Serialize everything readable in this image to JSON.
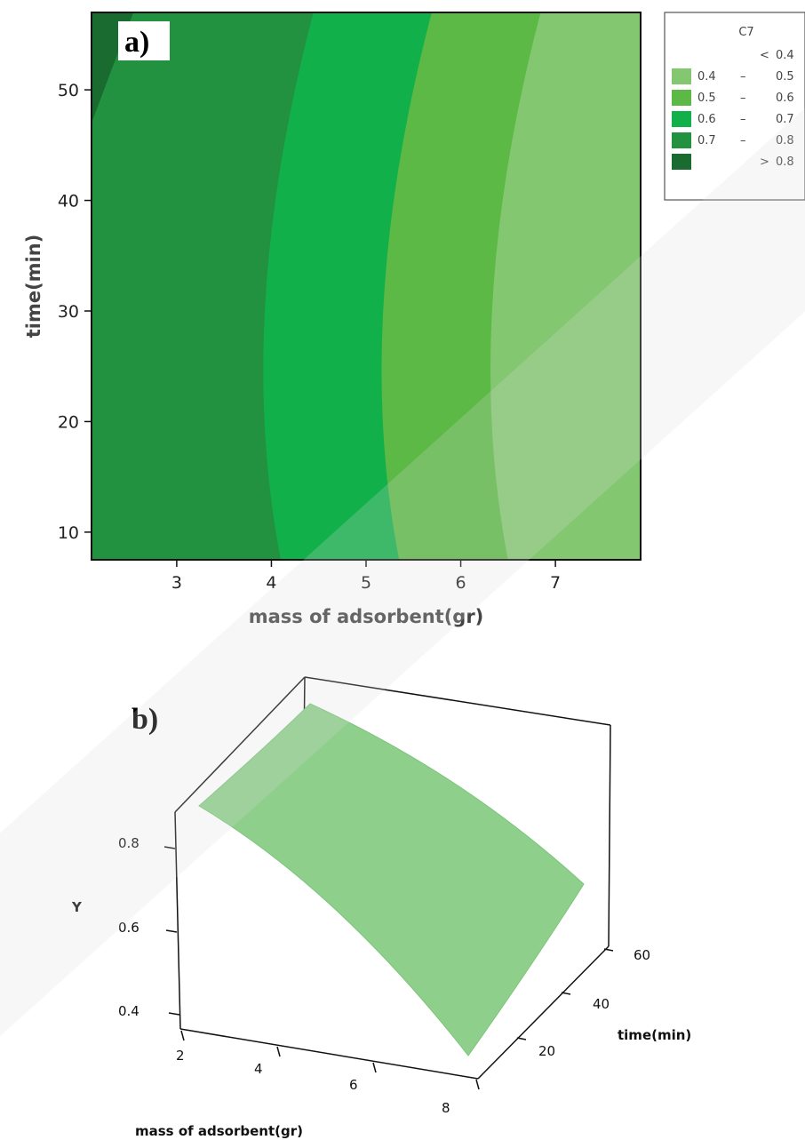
{
  "chart_data": [
    {
      "type": "contour",
      "panel_label": "a)",
      "xlabel": "mass of adsorbent(gr)",
      "ylabel": "time(min)",
      "xlim": [
        2.1,
        7.9
      ],
      "ylim": [
        7.5,
        57
      ],
      "x_ticks": [
        3,
        4,
        5,
        6,
        7
      ],
      "y_ticks": [
        10,
        20,
        30,
        40,
        50
      ],
      "legend": {
        "title": "C7",
        "position": "top-right",
        "levels": [
          {
            "low": "<",
            "high": "0.4",
            "color": "#ffffff"
          },
          {
            "low": "0.4",
            "high": "0.5",
            "color": "#84c771"
          },
          {
            "low": "0.5",
            "high": "0.6",
            "color": "#5cb946"
          },
          {
            "low": "0.6",
            "high": "0.7",
            "color": "#12b04a"
          },
          {
            "low": "0.7",
            "high": "0.8",
            "color": "#229140"
          },
          {
            "low": ">",
            "high": "0.8",
            "color": "#196b2f"
          }
        ]
      },
      "contour_boundaries": [
        {
          "level": 0.4,
          "vertex_x": 7.8,
          "vertex_t": 17
        },
        {
          "level": 0.5,
          "vertex_x": 5.0,
          "vertex_t": 17
        },
        {
          "level": 0.6,
          "vertex_x": 3.85,
          "vertex_t": 17
        },
        {
          "level": 0.7,
          "vertex_x": 2.6,
          "vertex_t": 17
        },
        {
          "level": 0.8,
          "vertex_x": 2.1,
          "vertex_t": 47
        }
      ]
    },
    {
      "type": "surface",
      "panel_label": "b)",
      "xlabel": "mass of adsorbent(gr)",
      "ylabel": "time(min)",
      "zlabel": "Y",
      "x_ticks": [
        2,
        4,
        6,
        8
      ],
      "y_ticks": [
        20,
        40,
        60
      ],
      "z_ticks": [
        0.4,
        0.6,
        0.8
      ],
      "surface_color": "#8fcf8c",
      "corners": [
        {
          "x": 2,
          "t": 10,
          "y": 0.76
        },
        {
          "x": 2,
          "t": 57,
          "y": 0.9
        },
        {
          "x": 8,
          "t": 10,
          "y": 0.36
        },
        {
          "x": 8,
          "t": 57,
          "y": 0.55
        }
      ]
    }
  ]
}
